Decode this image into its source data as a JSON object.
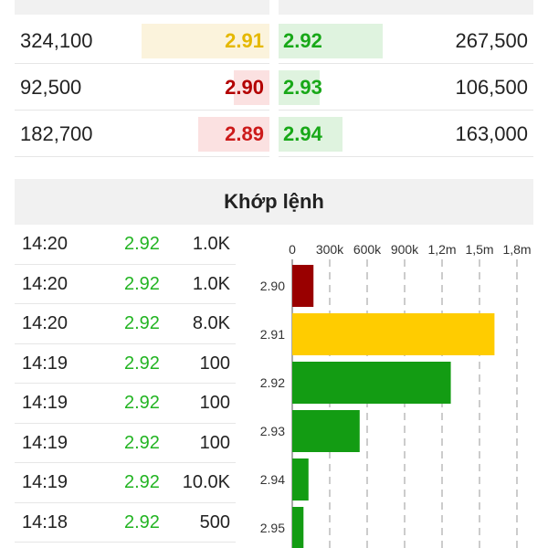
{
  "order_book": {
    "rows": [
      {
        "bid_volume": "324,100",
        "bid_price": "2.91",
        "bid_color": "#e5b800",
        "bid_bg": "#fbf3dc",
        "bid_fraction": 0.5,
        "ask_price": "2.92",
        "ask_color": "#18a818",
        "ask_bg": "#dff3df",
        "ask_fraction": 0.41,
        "ask_volume": "267,500"
      },
      {
        "bid_volume": "92,500",
        "bid_price": "2.90",
        "bid_color": "#b30000",
        "bid_bg": "#fbe1e1",
        "bid_fraction": 0.14,
        "ask_price": "2.93",
        "ask_color": "#18a818",
        "ask_bg": "#dff3df",
        "ask_fraction": 0.16,
        "ask_volume": "106,500"
      },
      {
        "bid_volume": "182,700",
        "bid_price": "2.89",
        "bid_color": "#cc1a1a",
        "bid_bg": "#fbe1e1",
        "bid_fraction": 0.28,
        "ask_price": "2.94",
        "ask_color": "#18a818",
        "ask_bg": "#dff3df",
        "ask_fraction": 0.25,
        "ask_volume": "163,000"
      }
    ]
  },
  "matched": {
    "title": "Khớp lệnh",
    "trades": [
      {
        "time": "14:20",
        "price": "2.92",
        "volume": "1.0K"
      },
      {
        "time": "14:20",
        "price": "2.92",
        "volume": "1.0K"
      },
      {
        "time": "14:20",
        "price": "2.92",
        "volume": "8.0K"
      },
      {
        "time": "14:19",
        "price": "2.92",
        "volume": "100"
      },
      {
        "time": "14:19",
        "price": "2.92",
        "volume": "100"
      },
      {
        "time": "14:19",
        "price": "2.92",
        "volume": "100"
      },
      {
        "time": "14:19",
        "price": "2.92",
        "volume": "10.0K"
      },
      {
        "time": "14:18",
        "price": "2.92",
        "volume": "500"
      }
    ]
  },
  "chart_data": {
    "type": "bar",
    "orientation": "horizontal",
    "categories": [
      "2.90",
      "2.91",
      "2.92",
      "2.93",
      "2.94",
      "2.95"
    ],
    "values": [
      170000,
      1620000,
      1270000,
      540000,
      130000,
      90000
    ],
    "colors": [
      "#990000",
      "#ffcc00",
      "#139c13",
      "#139c13",
      "#139c13",
      "#139c13"
    ],
    "x_ticks": [
      "0",
      "300k",
      "600k",
      "900k",
      "1,2m",
      "1,5m",
      "1,8m"
    ],
    "xlim": [
      0,
      1800000
    ],
    "grid": true
  }
}
